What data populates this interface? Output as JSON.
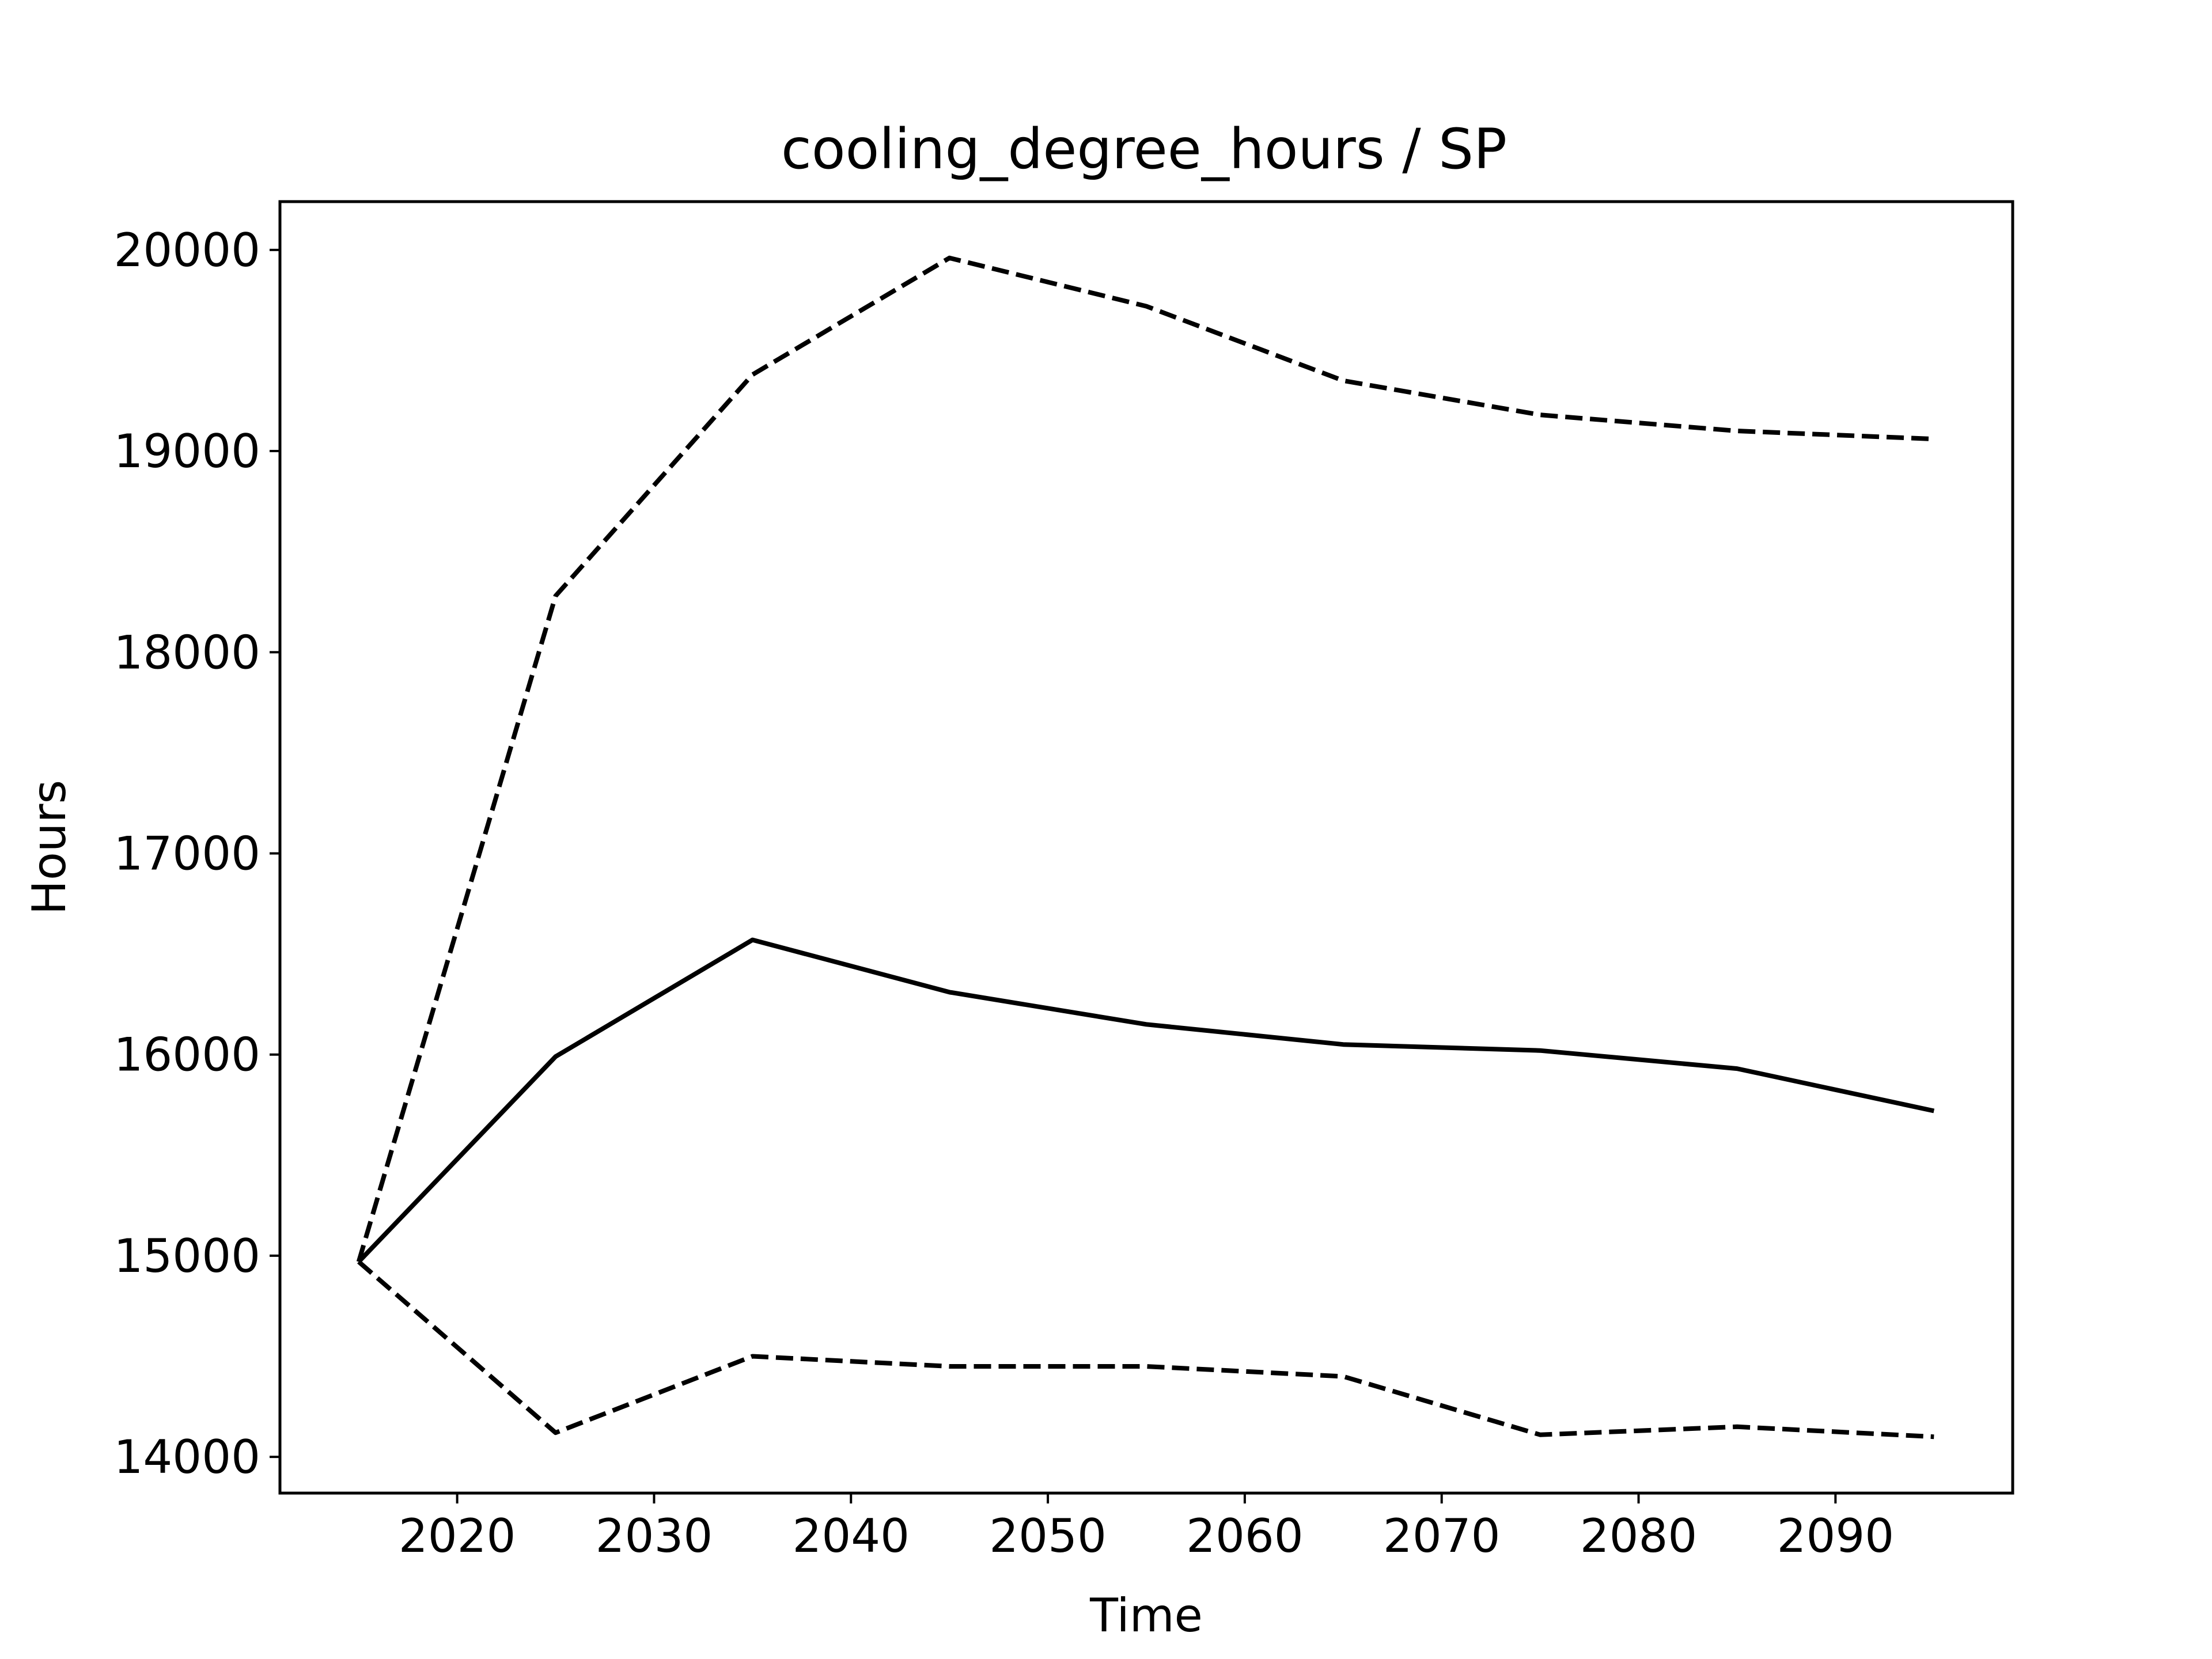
{
  "chart_data": {
    "type": "line",
    "title": "cooling_degree_hours / SP",
    "xlabel": "Time",
    "ylabel": "Hours",
    "xlim": [
      2011,
      2099
    ],
    "ylim": [
      13820,
      20240
    ],
    "x_ticks": [
      2020,
      2030,
      2040,
      2050,
      2060,
      2070,
      2080,
      2090
    ],
    "y_ticks": [
      14000,
      15000,
      16000,
      17000,
      18000,
      19000,
      20000
    ],
    "grid": false,
    "x": [
      2015,
      2025,
      2035,
      2045,
      2055,
      2065,
      2075,
      2085,
      2095
    ],
    "series": [
      {
        "style": "solid",
        "color": "#000000",
        "values": [
          14970,
          15990,
          16570,
          16310,
          16150,
          16050,
          16020,
          15930,
          15720
        ]
      },
      {
        "style": "dashed",
        "color": "#000000",
        "values": [
          14970,
          18280,
          19380,
          19960,
          19720,
          19350,
          19180,
          19100,
          19060
        ]
      },
      {
        "style": "dashed",
        "color": "#000000",
        "values": [
          14970,
          14120,
          14500,
          14450,
          14450,
          14400,
          14110,
          14150,
          14100
        ]
      }
    ]
  }
}
